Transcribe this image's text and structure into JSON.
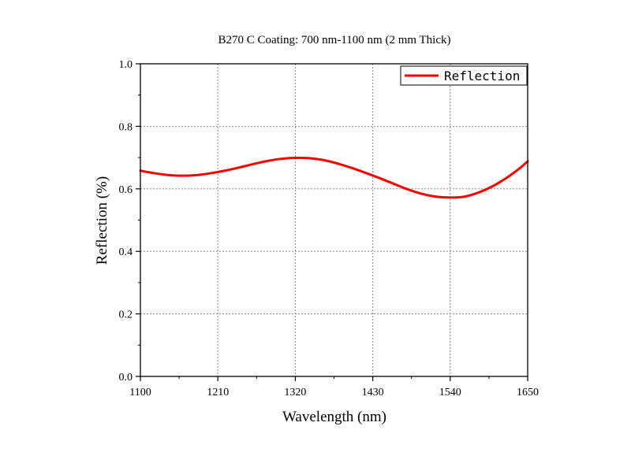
{
  "chart_data": {
    "type": "line",
    "title": "B270 C Coating: 700 nm-1100 nm (2 mm Thick)",
    "xlabel": "Wavelength (nm)",
    "ylabel": "Reflection (%)",
    "xlim": [
      1100,
      1650
    ],
    "ylim": [
      0.0,
      1.0
    ],
    "xticks": [
      "1100",
      "1210",
      "1320",
      "1430",
      "1540",
      "1650"
    ],
    "yticks": [
      "0.0",
      "0.2",
      "0.4",
      "0.6",
      "0.8",
      "1.0"
    ],
    "grid": true,
    "legend_position": "top-right",
    "series": [
      {
        "name": "Reflection",
        "color": "#ff0000",
        "x": [
          1100,
          1120,
          1140,
          1160,
          1180,
          1200,
          1220,
          1240,
          1260,
          1280,
          1300,
          1320,
          1340,
          1360,
          1380,
          1400,
          1420,
          1440,
          1460,
          1480,
          1500,
          1520,
          1540,
          1560,
          1580,
          1600,
          1620,
          1640,
          1650
        ],
        "y": [
          0.658,
          0.65,
          0.644,
          0.642,
          0.644,
          0.65,
          0.658,
          0.668,
          0.679,
          0.689,
          0.696,
          0.699,
          0.698,
          0.692,
          0.681,
          0.667,
          0.651,
          0.634,
          0.616,
          0.598,
          0.584,
          0.575,
          0.572,
          0.575,
          0.588,
          0.608,
          0.635,
          0.668,
          0.688
        ]
      }
    ]
  }
}
